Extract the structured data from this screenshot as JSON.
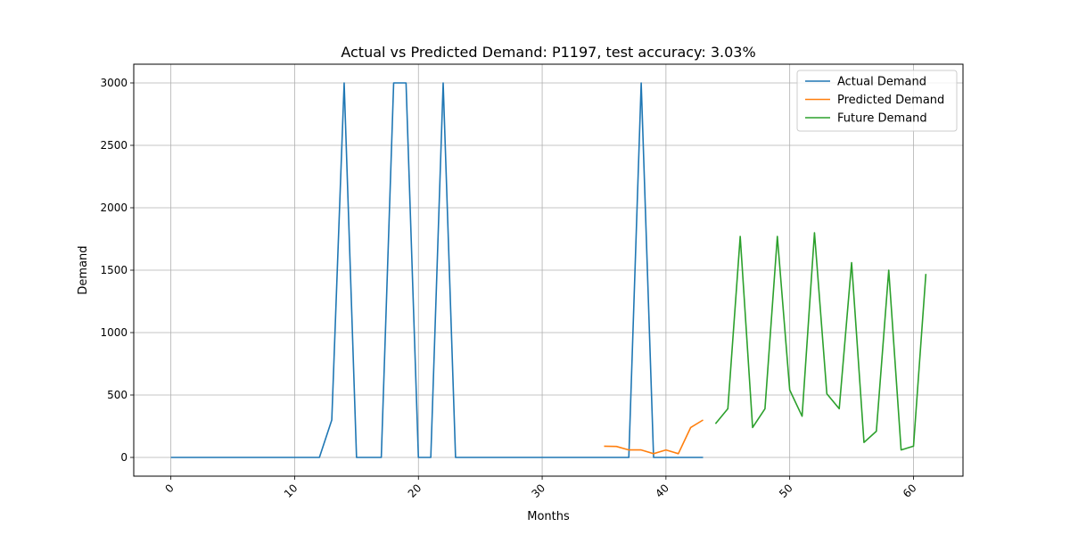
{
  "chart_data": {
    "type": "line",
    "title": "Actual vs Predicted Demand: P1197, test accuracy: 3.03%",
    "xlabel": "Months",
    "ylabel": "Demand",
    "xlim": [
      -3,
      64
    ],
    "ylim": [
      -150,
      3150
    ],
    "x_ticks": [
      0,
      10,
      20,
      30,
      40,
      50,
      60
    ],
    "y_ticks": [
      0,
      500,
      1000,
      1500,
      2000,
      2500,
      3000
    ],
    "grid": true,
    "legend_position": "top-right",
    "series": [
      {
        "name": "Actual Demand",
        "color": "#1f77b4",
        "x": [
          0,
          1,
          2,
          3,
          4,
          5,
          6,
          7,
          8,
          9,
          10,
          11,
          12,
          13,
          14,
          15,
          16,
          17,
          18,
          19,
          20,
          21,
          22,
          23,
          24,
          25,
          26,
          27,
          28,
          29,
          30,
          31,
          32,
          33,
          34,
          35,
          36,
          37,
          38,
          39,
          40,
          41,
          42,
          43
        ],
        "values": [
          0,
          0,
          0,
          0,
          0,
          0,
          0,
          0,
          0,
          0,
          0,
          0,
          0,
          300,
          3000,
          0,
          0,
          0,
          3000,
          3000,
          0,
          0,
          3000,
          0,
          0,
          0,
          0,
          0,
          0,
          0,
          0,
          0,
          0,
          0,
          0,
          0,
          0,
          0,
          3000,
          0,
          0,
          0,
          0,
          0
        ]
      },
      {
        "name": "Predicted Demand",
        "color": "#ff7f0e",
        "x": [
          35,
          36,
          37,
          38,
          39,
          40,
          41,
          42,
          43
        ],
        "values": [
          90,
          88,
          60,
          60,
          30,
          60,
          30,
          240,
          300
        ]
      },
      {
        "name": "Future Demand",
        "color": "#2ca02c",
        "x": [
          44,
          45,
          46,
          47,
          48,
          49,
          50,
          51,
          52,
          53,
          54,
          55,
          56,
          57,
          58,
          59,
          60,
          61
        ],
        "values": [
          270,
          390,
          1770,
          240,
          390,
          1770,
          540,
          330,
          1800,
          510,
          390,
          1560,
          120,
          210,
          1500,
          60,
          90,
          1470
        ]
      }
    ]
  }
}
